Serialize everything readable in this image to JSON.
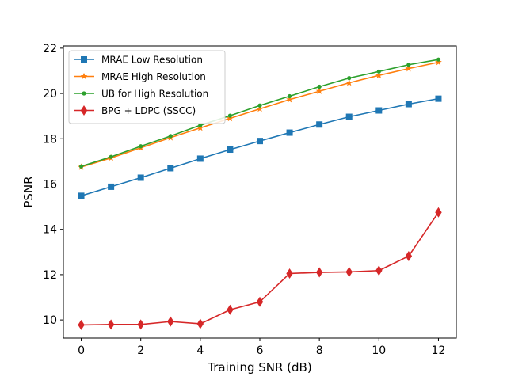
{
  "chart_data": {
    "type": "line",
    "title": "",
    "xlabel": "Training SNR (dB)",
    "ylabel": "PSNR",
    "x": [
      0,
      1,
      2,
      3,
      4,
      5,
      6,
      7,
      8,
      9,
      10,
      11,
      12
    ],
    "xlim": [
      -0.6,
      12.6
    ],
    "ylim": [
      9.2,
      22.1
    ],
    "xticks": [
      0,
      2,
      4,
      6,
      8,
      10,
      12
    ],
    "yticks": [
      10,
      12,
      14,
      16,
      18,
      20,
      22
    ],
    "legend_position": "top-left",
    "grid": false,
    "series": [
      {
        "name": "MRAE Low Resolution",
        "color": "#1f77b4",
        "marker": "square",
        "values": [
          15.48,
          15.88,
          16.28,
          16.7,
          17.12,
          17.52,
          17.9,
          18.27,
          18.63,
          18.97,
          19.25,
          19.53,
          19.77
        ]
      },
      {
        "name": "MRAE High Resolution",
        "color": "#ff7f0e",
        "marker": "star",
        "values": [
          16.75,
          17.15,
          17.6,
          18.05,
          18.48,
          18.9,
          19.32,
          19.73,
          20.1,
          20.47,
          20.8,
          21.1,
          21.38
        ]
      },
      {
        "name": "UB for High Resolution",
        "color": "#2ca02c",
        "marker": "dot",
        "values": [
          16.78,
          17.2,
          17.67,
          18.12,
          18.6,
          19.02,
          19.47,
          19.88,
          20.3,
          20.68,
          20.97,
          21.27,
          21.5
        ]
      },
      {
        "name": "BPG + LDPC (SSCC)",
        "color": "#d62728",
        "marker": "diamond",
        "values": [
          9.78,
          9.8,
          9.8,
          9.93,
          9.83,
          10.45,
          10.8,
          12.05,
          12.1,
          12.12,
          12.18,
          12.82,
          14.75
        ]
      }
    ]
  }
}
